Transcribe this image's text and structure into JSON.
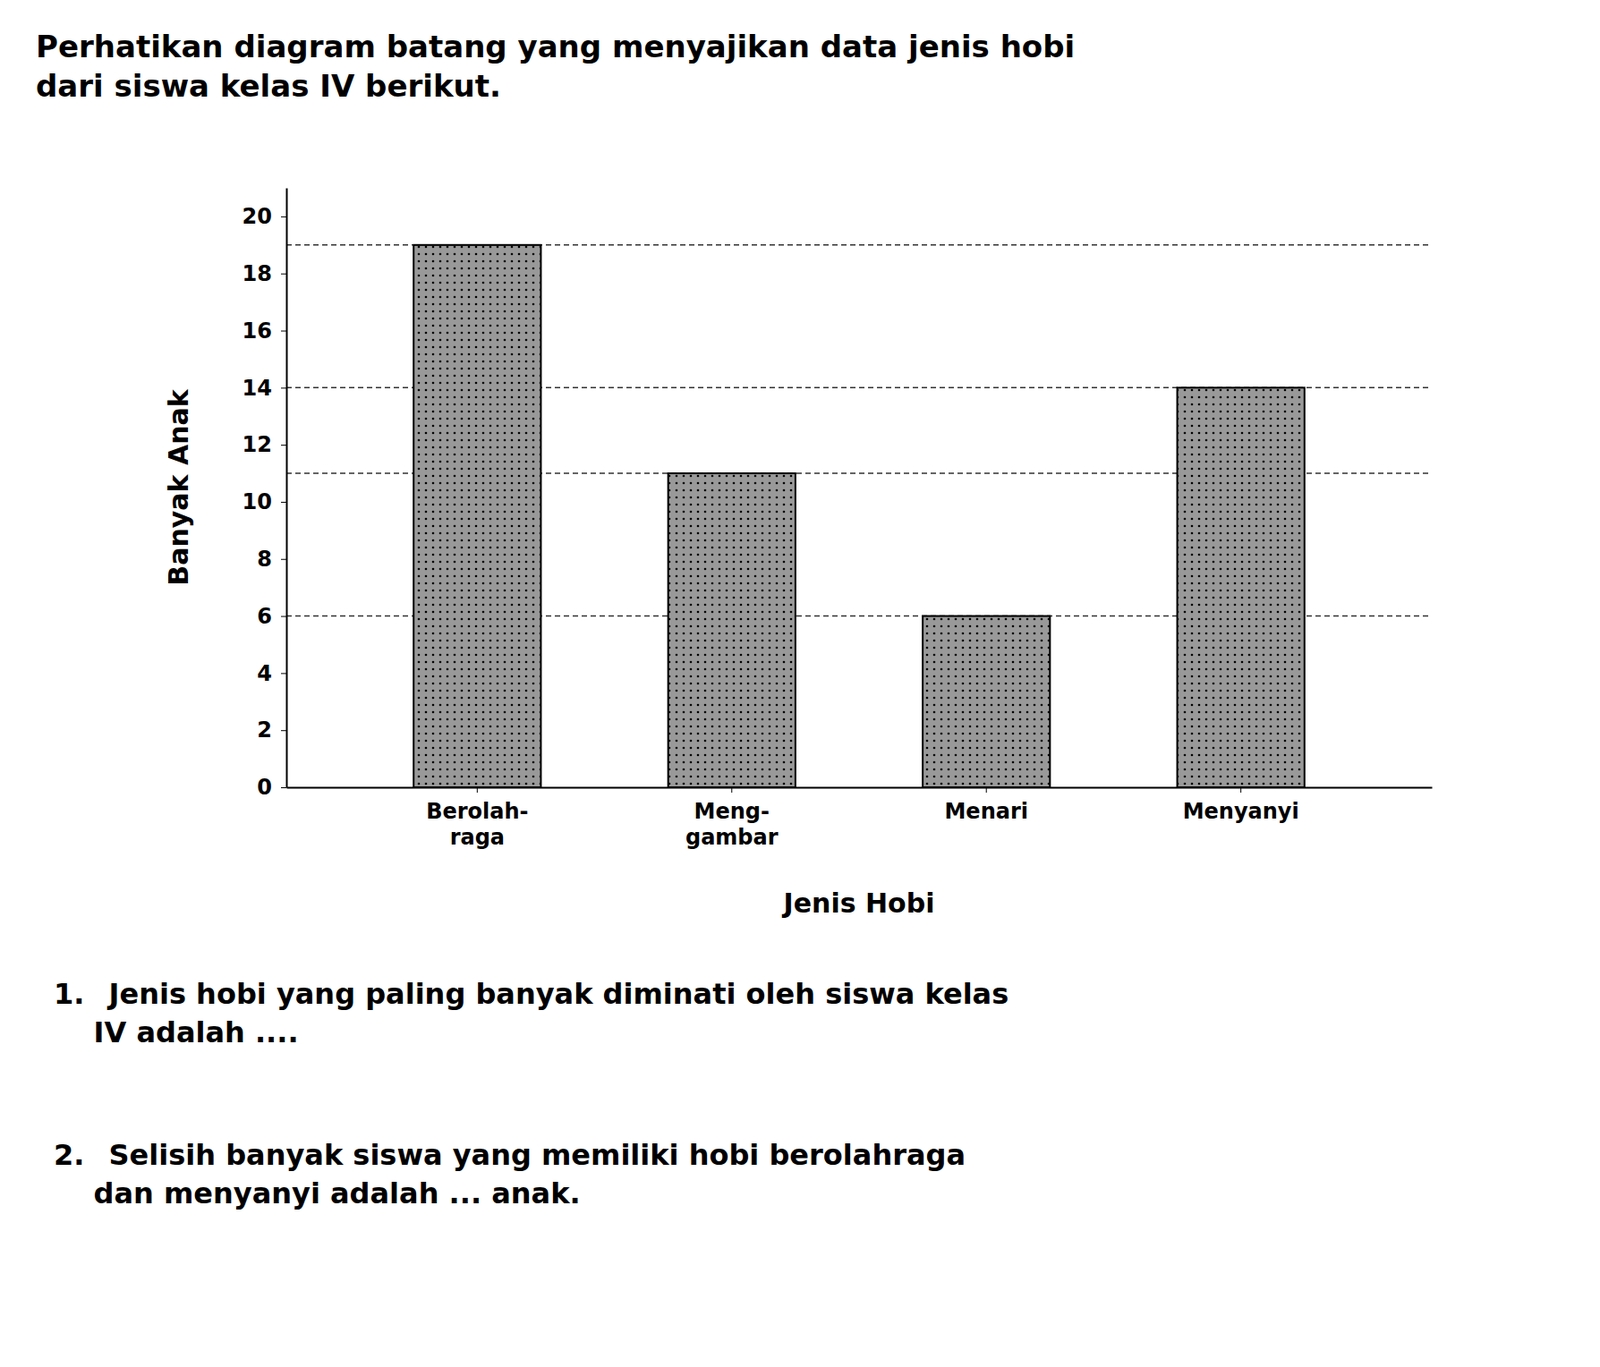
{
  "chart_data": {
    "type": "bar",
    "title": "Perhatikan diagram batang yang menyajikan data jenis hobi\ndari siswa kelas IV berikut.",
    "categories": [
      "Berolah-\nraga",
      "Meng-\ngambar",
      "Menari",
      "Menyanyi"
    ],
    "values": [
      19,
      11,
      6,
      14
    ],
    "color": "#999999",
    "xlabel": "Jenis Hobi",
    "ylabel": "Banyak Anak",
    "ylim": [
      0,
      21
    ],
    "yticks": [
      0,
      2,
      4,
      6,
      8,
      10,
      12,
      14,
      16,
      18,
      20
    ],
    "grid": false,
    "annotations": [
      "1.  Jenis hobi yang paling banyak diminati oleh siswa kelas\n    IV adalah ....",
      "2.  Selisih banyak siswa yang memiliki hobi berolahraga\n    dan menyanyi adalah ... anak."
    ]
  }
}
